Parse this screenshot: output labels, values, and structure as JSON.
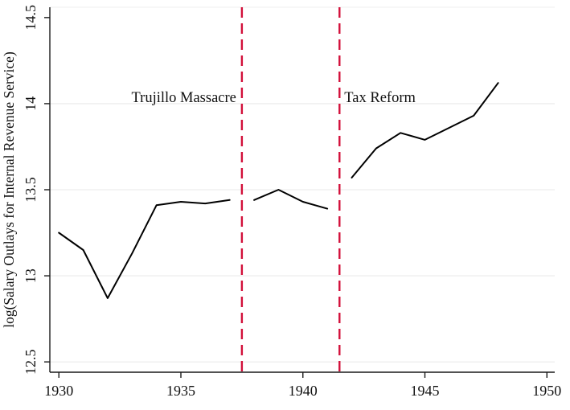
{
  "figure": {
    "background": "#ffffff"
  },
  "chart_data": {
    "type": "line",
    "title": "",
    "xlabel": "",
    "ylabel": "log(Salary Outlays for Internal Revenue Service)",
    "xlim": [
      1929.63,
      1950.32
    ],
    "ylim": [
      12.44,
      14.56
    ],
    "x_ticks": [
      1930,
      1935,
      1940,
      1945,
      1950
    ],
    "x_tick_labels": [
      "1930",
      "1935",
      "1940",
      "1945",
      "1950"
    ],
    "y_ticks": [
      12.5,
      13,
      13.5,
      14,
      14.5
    ],
    "y_tick_labels": [
      "12.5",
      "13",
      "13.5",
      "14",
      "14.5"
    ],
    "y_tick_label_rotation_deg": 90,
    "grid": "horizontal light-gray lines at labeled y ticks",
    "legend": "none",
    "series": [
      {
        "name": "pre-massacre-segment",
        "x": [
          1930,
          1931,
          1932,
          1933,
          1934,
          1935,
          1936,
          1937
        ],
        "y": [
          13.25,
          13.15,
          12.87,
          13.13,
          13.41,
          13.43,
          13.42,
          13.44
        ]
      },
      {
        "name": "between-events-segment",
        "x": [
          1938,
          1939,
          1940,
          1941
        ],
        "y": [
          13.44,
          13.5,
          13.43,
          13.39
        ]
      },
      {
        "name": "post-reform-segment",
        "x": [
          1942,
          1943,
          1944,
          1945,
          1946,
          1947,
          1948
        ],
        "y": [
          13.57,
          13.74,
          13.83,
          13.79,
          13.86,
          13.93,
          14.12
        ]
      }
    ],
    "vlines": [
      {
        "x": 1937.5,
        "label": "Trujillo Massacre",
        "label_side": "left",
        "style": "dashed"
      },
      {
        "x": 1941.5,
        "label": "Tax Reform",
        "label_side": "right",
        "style": "dashed"
      }
    ],
    "annotation_baseline_value": 14.0,
    "colors": {
      "line": "#000000",
      "vline": "#d2103a",
      "grid": "#eaeaea",
      "plot_top_edge": "#f2f2f2",
      "axis": "#1a1a1a",
      "text": "#111111"
    }
  }
}
